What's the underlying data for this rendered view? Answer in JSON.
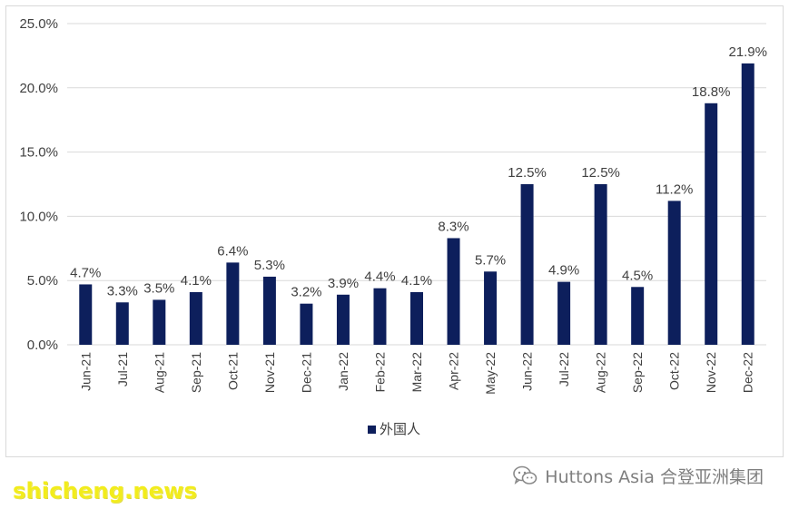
{
  "chart_data": {
    "type": "bar",
    "categories": [
      "Jun-21",
      "Jul-21",
      "Aug-21",
      "Sep-21",
      "Oct-21",
      "Nov-21",
      "Dec-21",
      "Jan-22",
      "Feb-22",
      "Mar-22",
      "Apr-22",
      "May-22",
      "Jun-22",
      "Jul-22",
      "Aug-22",
      "Sep-22",
      "Oct-22",
      "Nov-22",
      "Dec-22"
    ],
    "series": [
      {
        "name": "外国人",
        "values": [
          4.7,
          3.3,
          3.5,
          4.1,
          6.4,
          5.3,
          3.2,
          3.9,
          4.4,
          4.1,
          8.3,
          5.7,
          12.5,
          4.9,
          12.5,
          4.5,
          11.2,
          18.8,
          21.9
        ],
        "labels": [
          "4.7%",
          "3.3%",
          "3.5%",
          "4.1%",
          "6.4%",
          "5.3%",
          "3.2%",
          "3.9%",
          "4.4%",
          "4.1%",
          "8.3%",
          "5.7%",
          "12.5%",
          "4.9%",
          "12.5%",
          "4.5%",
          "11.2%",
          "18.8%",
          "21.9%"
        ],
        "color": "#0d1f5c"
      }
    ],
    "ylim": [
      0,
      25
    ],
    "yticks": [
      0,
      5,
      10,
      15,
      20,
      25
    ],
    "ytick_labels": [
      "0.0%",
      "5.0%",
      "10.0%",
      "15.0%",
      "20.0%",
      "25.0%"
    ],
    "title": "",
    "xlabel": "",
    "ylabel": "",
    "grid": true,
    "legend_position": "bottom-center",
    "gridline_color": "#d9d9d9",
    "label_color": "#404040"
  },
  "watermarks": {
    "site": "shicheng.news",
    "brand": "Huttons Asia 合登亚洲集团",
    "brand_icon": "wechat-icon"
  }
}
